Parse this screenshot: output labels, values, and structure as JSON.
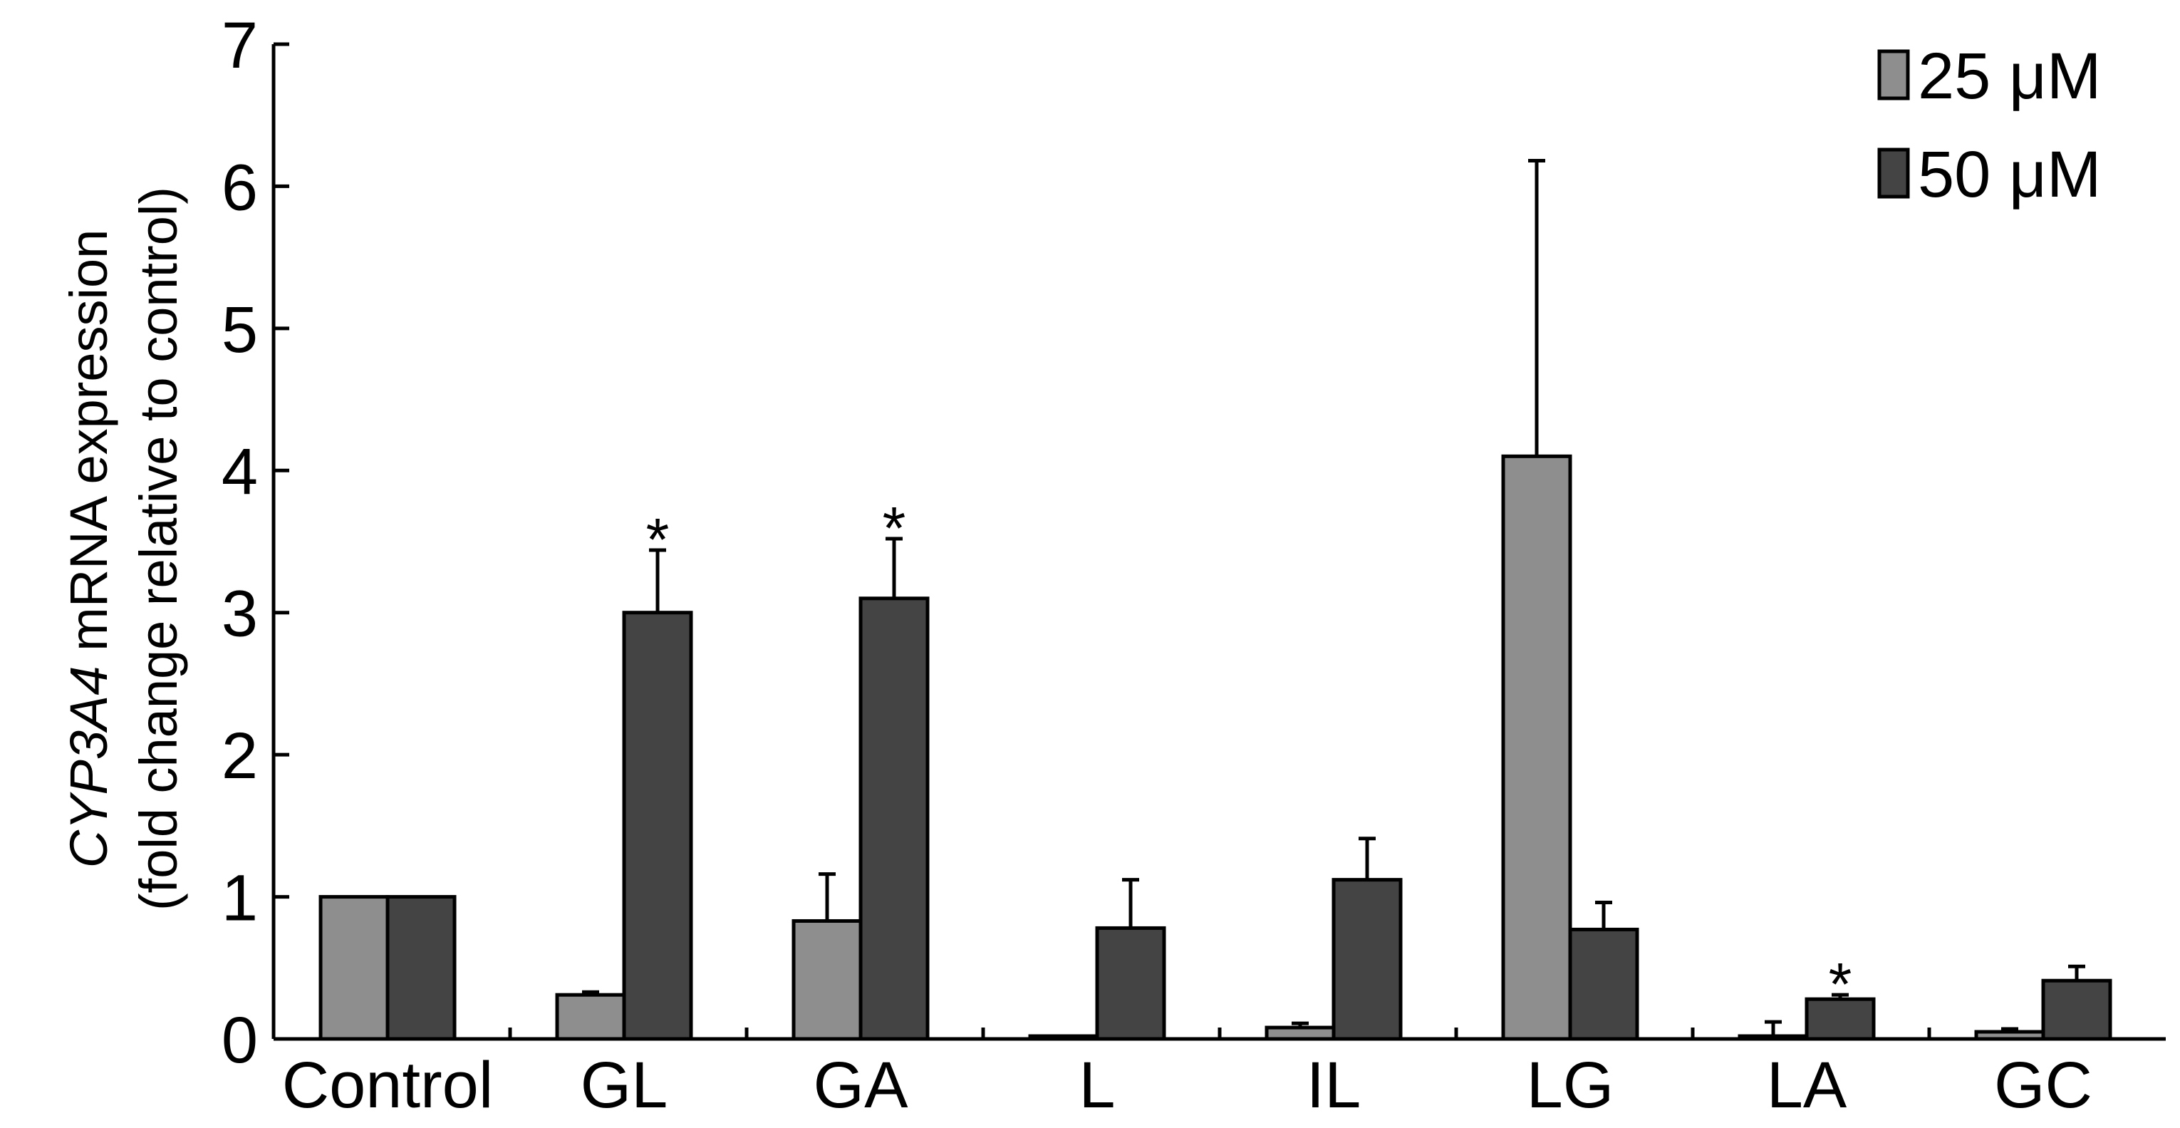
{
  "colors": {
    "series_25": "#8e8e8e",
    "series_50": "#444444",
    "axis": "#000000"
  },
  "legend": {
    "placement": "top-right",
    "items": [
      {
        "label": "25 μM",
        "series": 0
      },
      {
        "label": "50 μM",
        "series": 1
      }
    ]
  },
  "chart_data": {
    "type": "bar",
    "title": "",
    "xlabel": "",
    "ylabel_italic": "CYP3A4",
    "ylabel_rest": " mRNA expression",
    "ylabel_line2": "(fold change relative to control)",
    "ylim": [
      0,
      7
    ],
    "yticks": [
      "0",
      "1",
      "2",
      "3",
      "4",
      "5",
      "6",
      "7"
    ],
    "grid": false,
    "categories": [
      "Control",
      "GL",
      "GA",
      "L",
      "IL",
      "LG",
      "LA",
      "GC"
    ],
    "series": [
      {
        "name": "25 μM",
        "values": [
          1.0,
          0.31,
          0.83,
          0.02,
          0.08,
          4.1,
          0.02,
          0.05
        ],
        "errors": [
          0,
          0.02,
          0.33,
          0,
          0.03,
          2.08,
          0.1,
          0.02
        ],
        "significant": [
          false,
          false,
          false,
          false,
          false,
          false,
          false,
          false
        ]
      },
      {
        "name": "50 μM",
        "values": [
          1.0,
          3.0,
          3.1,
          0.78,
          1.12,
          0.77,
          0.28,
          0.41
        ],
        "errors": [
          0,
          0.44,
          0.42,
          0.34,
          0.29,
          0.19,
          0.03,
          0.1
        ],
        "significant": [
          false,
          true,
          true,
          false,
          false,
          false,
          true,
          false
        ]
      }
    ],
    "significance_marker": "*"
  }
}
